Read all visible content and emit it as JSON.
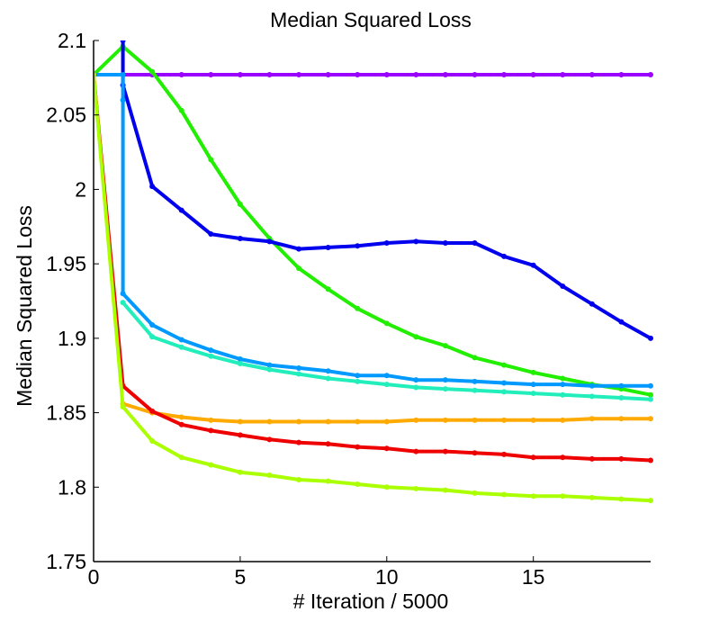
{
  "chart_data": {
    "type": "line",
    "title": "Median Squared Loss",
    "xlabel": "# Iteration / 5000",
    "ylabel": "Median Squared Loss",
    "xlim": [
      0,
      19
    ],
    "ylim": [
      1.75,
      2.1
    ],
    "xticks": [
      0,
      5,
      10,
      15
    ],
    "xtick_labels": [
      "0",
      "5",
      "10",
      "15"
    ],
    "yticks": [
      1.75,
      1.8,
      1.85,
      1.9,
      1.95,
      2.0,
      2.05,
      2.1
    ],
    "ytick_labels": [
      "1.75",
      "1.8",
      "1.85",
      "1.9",
      "1.95",
      "2",
      "2.05",
      "2.1"
    ],
    "grid": false,
    "x": [
      0,
      1,
      2,
      3,
      4,
      5,
      6,
      7,
      8,
      9,
      10,
      11,
      12,
      13,
      14,
      15,
      16,
      17,
      18,
      19
    ],
    "series": [
      {
        "name": "purple",
        "color": "#9900ff",
        "x": [
          0,
          1,
          2,
          3,
          4,
          5,
          6,
          7,
          8,
          9,
          10,
          11,
          12,
          13,
          14,
          15,
          16,
          17,
          18,
          19
        ],
        "values": [
          2.077,
          2.077,
          2.077,
          2.077,
          2.077,
          2.077,
          2.077,
          2.077,
          2.077,
          2.077,
          2.077,
          2.077,
          2.077,
          2.077,
          2.077,
          2.077,
          2.077,
          2.077,
          2.077,
          2.077
        ]
      },
      {
        "name": "green",
        "color": "#22ee00",
        "x": [
          0,
          1,
          2,
          3,
          4,
          5,
          6,
          7,
          8,
          9,
          10,
          11,
          12,
          13,
          14,
          15,
          16,
          17,
          18,
          19
        ],
        "values": [
          2.077,
          2.096,
          2.079,
          2.053,
          2.02,
          1.99,
          1.967,
          1.947,
          1.933,
          1.92,
          1.91,
          1.901,
          1.895,
          1.887,
          1.882,
          1.877,
          1.873,
          1.869,
          1.866,
          1.862
        ]
      },
      {
        "name": "blue",
        "color": "#0000ee",
        "x": [
          1,
          1,
          2,
          3,
          4,
          5,
          6,
          7,
          8,
          9,
          10,
          11,
          12,
          13,
          14,
          15,
          16,
          17,
          18,
          19
        ],
        "values": [
          2.1,
          2.07,
          2.002,
          1.986,
          1.97,
          1.967,
          1.965,
          1.96,
          1.961,
          1.962,
          1.964,
          1.965,
          1.964,
          1.964,
          1.955,
          1.949,
          1.935,
          1.923,
          1.911,
          1.9
        ]
      },
      {
        "name": "sky-blue",
        "color": "#0099ff",
        "x": [
          0,
          1,
          1,
          1,
          2,
          3,
          4,
          5,
          6,
          7,
          8,
          9,
          10,
          11,
          12,
          13,
          14,
          15,
          16,
          17,
          18,
          19
        ],
        "values": [
          2.077,
          2.077,
          2.06,
          1.93,
          1.909,
          1.899,
          1.892,
          1.886,
          1.882,
          1.88,
          1.878,
          1.875,
          1.875,
          1.872,
          1.872,
          1.871,
          1.87,
          1.869,
          1.869,
          1.868,
          1.868,
          1.868
        ]
      },
      {
        "name": "cyan",
        "color": "#22eebb",
        "x": [
          1,
          2,
          3,
          4,
          5,
          6,
          7,
          8,
          9,
          10,
          11,
          12,
          13,
          14,
          15,
          16,
          17,
          18,
          19
        ],
        "values": [
          1.924,
          1.901,
          1.894,
          1.888,
          1.883,
          1.879,
          1.876,
          1.873,
          1.871,
          1.869,
          1.867,
          1.866,
          1.865,
          1.864,
          1.863,
          1.862,
          1.861,
          1.86,
          1.859
        ]
      },
      {
        "name": "orange",
        "color": "#ffaa00",
        "x": [
          1,
          2,
          3,
          4,
          5,
          6,
          7,
          8,
          9,
          10,
          11,
          12,
          13,
          14,
          15,
          16,
          17,
          18,
          19
        ],
        "values": [
          1.856,
          1.85,
          1.847,
          1.845,
          1.844,
          1.844,
          1.844,
          1.844,
          1.844,
          1.844,
          1.845,
          1.845,
          1.845,
          1.845,
          1.845,
          1.845,
          1.846,
          1.846,
          1.846
        ]
      },
      {
        "name": "red",
        "color": "#ee0000",
        "x": [
          0,
          1,
          2,
          3,
          4,
          5,
          6,
          7,
          8,
          9,
          10,
          11,
          12,
          13,
          14,
          15,
          16,
          17,
          18,
          19
        ],
        "values": [
          2.077,
          1.868,
          1.851,
          1.842,
          1.838,
          1.835,
          1.832,
          1.83,
          1.829,
          1.827,
          1.826,
          1.824,
          1.824,
          1.823,
          1.822,
          1.82,
          1.82,
          1.819,
          1.819,
          1.818
        ]
      },
      {
        "name": "yellow-green",
        "color": "#aaff00",
        "x": [
          0,
          1,
          2,
          3,
          4,
          5,
          6,
          7,
          8,
          9,
          10,
          11,
          12,
          13,
          14,
          15,
          16,
          17,
          18,
          19
        ],
        "values": [
          2.077,
          1.854,
          1.831,
          1.82,
          1.815,
          1.81,
          1.808,
          1.805,
          1.804,
          1.802,
          1.8,
          1.799,
          1.798,
          1.796,
          1.795,
          1.794,
          1.794,
          1.793,
          1.792,
          1.791
        ]
      }
    ]
  }
}
